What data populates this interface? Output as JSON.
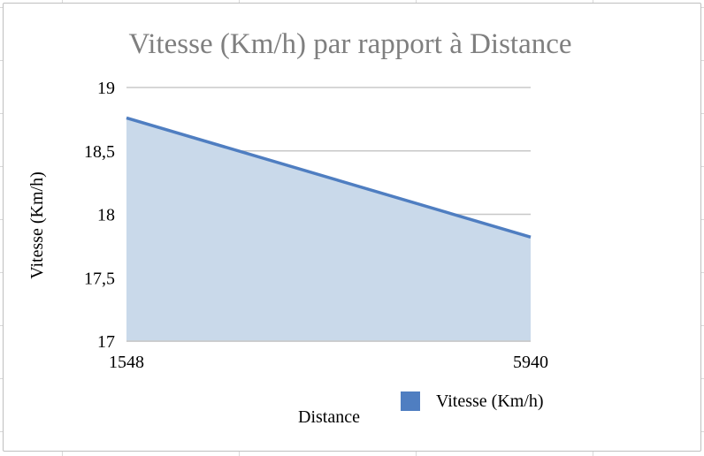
{
  "chart_data": {
    "type": "area",
    "title": "Vitesse (Km/h) par rapport à Distance",
    "xlabel": "Distance",
    "ylabel": "Vitesse (Km/h)",
    "x": [
      1548,
      5940
    ],
    "x_tick_labels": [
      "1548",
      "5940"
    ],
    "y_tick_labels": [
      "17",
      "17,5",
      "18",
      "18,5",
      "19"
    ],
    "y_ticks": [
      17,
      17.5,
      18,
      18.5,
      19
    ],
    "ylim": [
      17,
      19
    ],
    "series": [
      {
        "name": "Vitesse (Km/h)",
        "values": [
          18.76,
          17.82
        ]
      }
    ],
    "grid": true,
    "legend_position": "bottom-right",
    "colors": {
      "line": "#4f7ec1",
      "area": "#c9d9ea",
      "grid": "#c8c8c8",
      "title": "#7f7f7f",
      "legend_swatch": "#4f7ec1"
    }
  }
}
